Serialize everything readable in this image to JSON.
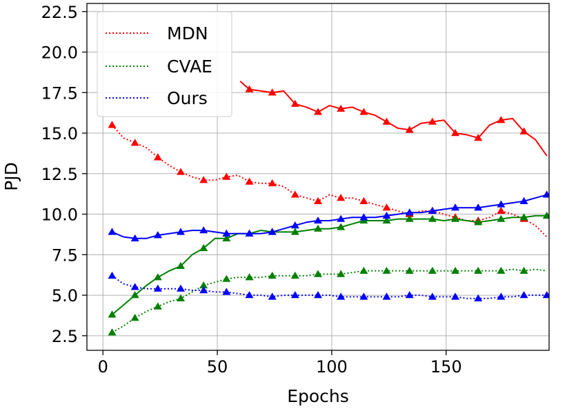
{
  "chart_data": {
    "type": "line",
    "xlabel": "Epochs",
    "ylabel": "PJD",
    "xlim": [
      -7,
      195
    ],
    "ylim": [
      1.6,
      23.0
    ],
    "xticks": [
      0,
      50,
      100,
      150
    ],
    "yticks": [
      2.5,
      5.0,
      7.5,
      10.0,
      12.5,
      15.0,
      17.5,
      20.0,
      22.5
    ],
    "xtick_labels": [
      "0",
      "50",
      "100",
      "150"
    ],
    "ytick_labels": [
      "2.5",
      "5.0",
      "7.5",
      "10.0",
      "12.5",
      "15.0",
      "17.5",
      "20.0",
      "22.5"
    ],
    "grid": true,
    "legend": {
      "position": "top-left",
      "entries": [
        {
          "label": "MDN",
          "color": "#ff0000",
          "style": "dotted"
        },
        {
          "label": "CVAE",
          "color": "#008000",
          "style": "dotted"
        },
        {
          "label": "Ours",
          "color": "#0000ff",
          "style": "dotted"
        }
      ]
    },
    "series": [
      {
        "name": "MDN",
        "group": "MDN",
        "style": "dotted",
        "color": "#ff0000",
        "x": [
          4,
          9,
          14,
          19,
          24,
          29,
          34,
          39,
          44,
          49,
          54,
          59,
          64,
          69,
          74,
          79,
          84,
          89,
          94,
          99,
          104,
          109,
          114,
          119,
          124,
          129,
          134,
          139,
          144,
          149,
          154,
          159,
          164,
          169,
          174,
          179,
          184,
          189,
          194
        ],
        "y": [
          15.5,
          14.7,
          14.4,
          14.1,
          13.5,
          13.0,
          12.6,
          12.3,
          12.1,
          12.1,
          12.3,
          12.4,
          12.0,
          11.9,
          11.9,
          11.7,
          11.2,
          11.0,
          10.8,
          11.2,
          11.0,
          11.0,
          10.8,
          10.6,
          10.4,
          10.2,
          10.0,
          10.2,
          10.2,
          10.0,
          9.8,
          9.6,
          9.6,
          9.8,
          10.2,
          10.0,
          9.7,
          9.3,
          8.6
        ],
        "markers": [
          4,
          14,
          24,
          34,
          44,
          54,
          64,
          74,
          84,
          94,
          104,
          114,
          124,
          134,
          144,
          154,
          164,
          174,
          184
        ]
      },
      {
        "name": "MDN",
        "group": "MDN",
        "style": "solid",
        "color": "#ff0000",
        "x": [
          60,
          64,
          69,
          74,
          79,
          84,
          89,
          94,
          99,
          104,
          109,
          114,
          119,
          124,
          129,
          134,
          139,
          144,
          149,
          154,
          159,
          164,
          169,
          174,
          179,
          184,
          189,
          194
        ],
        "y": [
          18.2,
          17.7,
          17.6,
          17.5,
          17.6,
          16.8,
          16.6,
          16.3,
          16.7,
          16.5,
          16.6,
          16.3,
          16.1,
          15.7,
          15.3,
          15.2,
          15.6,
          15.7,
          15.8,
          15.0,
          14.9,
          14.7,
          15.5,
          15.8,
          15.9,
          15.1,
          14.6,
          13.6
        ],
        "markers": [
          64,
          74,
          84,
          94,
          104,
          114,
          124,
          134,
          144,
          154,
          164,
          174,
          184
        ]
      },
      {
        "name": "CVAE",
        "group": "CVAE",
        "style": "dotted",
        "color": "#008000",
        "x": [
          4,
          9,
          14,
          19,
          24,
          29,
          34,
          39,
          44,
          49,
          54,
          59,
          64,
          69,
          74,
          79,
          84,
          89,
          94,
          99,
          104,
          109,
          114,
          119,
          124,
          129,
          134,
          139,
          144,
          149,
          154,
          159,
          164,
          169,
          174,
          179,
          184,
          189,
          194
        ],
        "y": [
          2.7,
          3.1,
          3.6,
          4.0,
          4.3,
          4.6,
          4.8,
          5.2,
          5.6,
          5.8,
          6.0,
          6.1,
          6.1,
          6.1,
          6.2,
          6.2,
          6.2,
          6.2,
          6.3,
          6.3,
          6.3,
          6.4,
          6.5,
          6.5,
          6.5,
          6.5,
          6.5,
          6.5,
          6.5,
          6.5,
          6.5,
          6.5,
          6.5,
          6.5,
          6.5,
          6.6,
          6.5,
          6.6,
          6.5
        ],
        "markers": [
          4,
          14,
          24,
          34,
          44,
          54,
          64,
          74,
          84,
          94,
          104,
          114,
          124,
          134,
          144,
          154,
          164,
          174,
          184
        ]
      },
      {
        "name": "CVAE",
        "group": "CVAE",
        "style": "solid",
        "color": "#008000",
        "x": [
          4,
          9,
          14,
          19,
          24,
          29,
          34,
          39,
          44,
          49,
          54,
          59,
          64,
          69,
          74,
          79,
          84,
          89,
          94,
          99,
          104,
          109,
          114,
          119,
          124,
          129,
          134,
          139,
          144,
          149,
          154,
          159,
          164,
          169,
          174,
          179,
          184,
          189,
          194
        ],
        "y": [
          3.8,
          4.4,
          5.0,
          5.6,
          6.1,
          6.5,
          6.8,
          7.5,
          7.9,
          8.5,
          8.5,
          8.8,
          8.8,
          9.0,
          8.9,
          8.9,
          8.9,
          9.0,
          9.1,
          9.1,
          9.2,
          9.4,
          9.6,
          9.6,
          9.6,
          9.7,
          9.7,
          9.7,
          9.7,
          9.6,
          9.7,
          9.6,
          9.5,
          9.6,
          9.7,
          9.8,
          9.8,
          9.9,
          9.9
        ],
        "markers": [
          4,
          14,
          24,
          34,
          44,
          54,
          64,
          74,
          84,
          94,
          104,
          114,
          124,
          134,
          144,
          154,
          164,
          174,
          184,
          194
        ]
      },
      {
        "name": "Ours",
        "group": "Ours",
        "style": "dotted",
        "color": "#0000ff",
        "x": [
          4,
          9,
          14,
          19,
          24,
          29,
          34,
          39,
          44,
          49,
          54,
          59,
          64,
          69,
          74,
          79,
          84,
          89,
          94,
          99,
          104,
          109,
          114,
          119,
          124,
          129,
          134,
          139,
          144,
          149,
          154,
          159,
          164,
          169,
          174,
          179,
          184,
          189,
          194
        ],
        "y": [
          6.2,
          5.7,
          5.5,
          5.4,
          5.4,
          5.4,
          5.4,
          5.3,
          5.3,
          5.2,
          5.2,
          5.1,
          5.0,
          5.0,
          4.9,
          5.0,
          5.0,
          5.0,
          5.0,
          5.0,
          4.9,
          4.9,
          4.9,
          4.9,
          4.9,
          4.9,
          5.0,
          5.0,
          4.9,
          4.9,
          4.9,
          4.8,
          4.8,
          4.8,
          4.9,
          4.9,
          5.0,
          5.0,
          5.0
        ],
        "markers": [
          4,
          14,
          24,
          34,
          44,
          54,
          64,
          74,
          84,
          94,
          104,
          114,
          124,
          134,
          144,
          154,
          164,
          174,
          184,
          194
        ]
      },
      {
        "name": "Ours",
        "group": "Ours",
        "style": "solid",
        "color": "#0000ff",
        "x": [
          4,
          9,
          14,
          19,
          24,
          29,
          34,
          39,
          44,
          49,
          54,
          59,
          64,
          69,
          74,
          79,
          84,
          89,
          94,
          99,
          104,
          109,
          114,
          119,
          124,
          129,
          134,
          139,
          144,
          149,
          154,
          159,
          164,
          169,
          174,
          179,
          184,
          189,
          194
        ],
        "y": [
          8.9,
          8.6,
          8.5,
          8.5,
          8.7,
          8.8,
          8.9,
          9.0,
          9.0,
          8.9,
          8.8,
          8.8,
          8.8,
          8.8,
          8.9,
          9.1,
          9.3,
          9.5,
          9.6,
          9.6,
          9.7,
          9.8,
          9.8,
          9.8,
          9.9,
          10.0,
          10.1,
          10.1,
          10.2,
          10.3,
          10.4,
          10.4,
          10.4,
          10.5,
          10.6,
          10.7,
          10.8,
          11.0,
          11.2
        ],
        "markers": [
          4,
          14,
          24,
          34,
          44,
          54,
          64,
          74,
          84,
          94,
          104,
          114,
          124,
          134,
          144,
          154,
          164,
          174,
          184,
          194
        ]
      }
    ]
  }
}
